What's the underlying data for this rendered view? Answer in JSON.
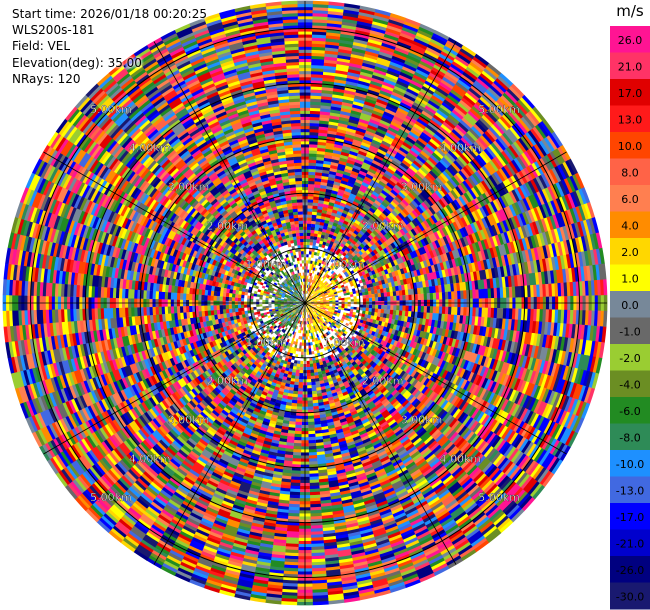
{
  "header": {
    "start_time": "Start time: 2026/01/18 00:20:25",
    "instrument": "WLS200s-181",
    "field": "Field: VEL",
    "elevation": "Elevation(deg): 35.00",
    "nrays": "NRays: 120"
  },
  "colorbar": {
    "unit": "m/s",
    "ticks": [
      "26.0",
      "21.0",
      "17.0",
      "13.0",
      "10.0",
      "8.0",
      "6.0",
      "4.0",
      "2.0",
      "1.0",
      "0.0",
      "-1.0",
      "-2.0",
      "-4.0",
      "-6.0",
      "-8.0",
      "-10.0",
      "-13.0",
      "-17.0",
      "-21.0",
      "-26.0",
      "-30.0"
    ],
    "colors": [
      "#ff1493",
      "#ff3366",
      "#e00000",
      "#ff1a1a",
      "#ff4500",
      "#ff6347",
      "#ff7f50",
      "#ff8c00",
      "#ffd700",
      "#ffff00",
      "#778899",
      "#696969",
      "#9acd32",
      "#6b8e23",
      "#228b22",
      "#2e8b57",
      "#1e90ff",
      "#4169e1",
      "#0000ff",
      "#0000cd",
      "#000080",
      "#191970"
    ]
  },
  "chart_data": {
    "type": "heatmap",
    "projection": "polar PPI (plan position indicator)",
    "field": "VEL",
    "units": "m/s",
    "elevation_deg": 35.0,
    "n_rays": 120,
    "value_range": [
      -30.0,
      26.0
    ],
    "range_ring_labels": [
      "1.00km",
      "2.00km",
      "3.00km",
      "4.00km",
      "5.00km"
    ],
    "range_rings_km": [
      1,
      2,
      3,
      4,
      5
    ],
    "pattern": "near-zero velocities (green/blue) west of center, positive (yellow) east of center close to radar; noisy full-range multicolor beyond ~1 km"
  }
}
